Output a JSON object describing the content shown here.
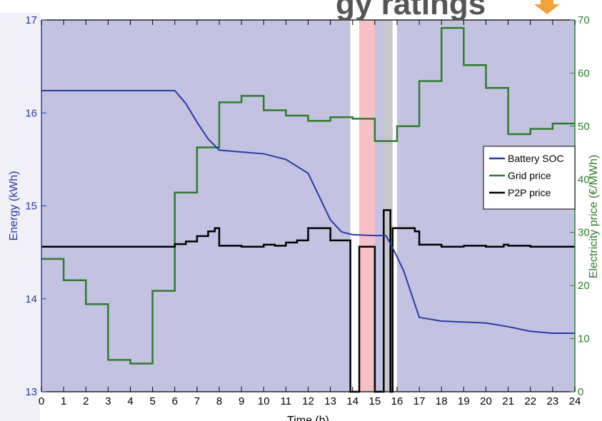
{
  "chart_data": {
    "type": "line",
    "title_fragment": "gy ratings",
    "xlabel": "Time (h)",
    "ylabel_left": "Energy (kWh)",
    "ylabel_right": "Electricity price (€/MWh)",
    "xlim": [
      0,
      24
    ],
    "ylim_left": [
      13,
      17
    ],
    "ylim_right": [
      0,
      70
    ],
    "x_ticks": [
      "0",
      "1",
      "2",
      "3",
      "4",
      "5",
      "6",
      "7",
      "8",
      "9",
      "10",
      "11",
      "12",
      "13",
      "14",
      "15",
      "16",
      "17",
      "18",
      "19",
      "20",
      "21",
      "22",
      "23",
      "24"
    ],
    "y_left_ticks": [
      "13",
      "14",
      "15",
      "16",
      "17"
    ],
    "y_right_ticks": [
      "0",
      "10",
      "20",
      "30",
      "40",
      "50",
      "60",
      "70"
    ],
    "grid": false,
    "legend_position": "right",
    "legend": [
      "Battery SOC",
      "Grid price",
      "P2P price"
    ],
    "colors": {
      "background": "#c3c3e1",
      "battery": "#2a3aa8",
      "grid_price": "#2e7d2e",
      "p2p": "#000000",
      "left_axis": "#2a3aa8",
      "right_axis": "#2e7d2e",
      "band_white": "#ffffff",
      "band_red": "#f6c0c6",
      "band_gray": "#c6c6cc",
      "arrow": "#f2a23a"
    },
    "highlight_bands": [
      {
        "x0": 13.9,
        "x1": 14.3,
        "kind": "white"
      },
      {
        "x0": 14.3,
        "x1": 15.0,
        "kind": "red"
      },
      {
        "x0": 15.4,
        "x1": 15.8,
        "kind": "gray"
      },
      {
        "x0": 15.8,
        "x1": 16.0,
        "kind": "white"
      }
    ],
    "series": [
      {
        "name": "Battery SOC",
        "axis": "left",
        "x": [
          0,
          6,
          6.5,
          7,
          7.5,
          8,
          9,
          10,
          11,
          12,
          12.5,
          13,
          13.5,
          14,
          15,
          15.5,
          15.8,
          16.3,
          17,
          18,
          19,
          20,
          21,
          22,
          23,
          24
        ],
        "y": [
          16.24,
          16.24,
          16.1,
          15.9,
          15.72,
          15.6,
          15.58,
          15.56,
          15.5,
          15.35,
          15.1,
          14.85,
          14.72,
          14.69,
          14.68,
          14.68,
          14.55,
          14.3,
          13.8,
          13.76,
          13.75,
          13.74,
          13.7,
          13.65,
          13.63,
          13.63
        ]
      },
      {
        "name": "Grid price",
        "axis": "right",
        "steps": [
          {
            "x0": 0,
            "x1": 1,
            "y": 25
          },
          {
            "x0": 1,
            "x1": 2,
            "y": 21
          },
          {
            "x0": 2,
            "x1": 3,
            "y": 16.5
          },
          {
            "x0": 3,
            "x1": 4,
            "y": 6
          },
          {
            "x0": 4,
            "x1": 5,
            "y": 5.3
          },
          {
            "x0": 5,
            "x1": 6,
            "y": 19
          },
          {
            "x0": 6,
            "x1": 7,
            "y": 37.5
          },
          {
            "x0": 7,
            "x1": 8,
            "y": 46
          },
          {
            "x0": 8,
            "x1": 9,
            "y": 54.5
          },
          {
            "x0": 9,
            "x1": 10,
            "y": 55.7
          },
          {
            "x0": 10,
            "x1": 11,
            "y": 53
          },
          {
            "x0": 11,
            "x1": 12,
            "y": 52
          },
          {
            "x0": 12,
            "x1": 13,
            "y": 51
          },
          {
            "x0": 13,
            "x1": 14,
            "y": 51.7
          },
          {
            "x0": 14,
            "x1": 15,
            "y": 51.4
          },
          {
            "x0": 15,
            "x1": 16,
            "y": 47.2
          },
          {
            "x0": 16,
            "x1": 17,
            "y": 50
          },
          {
            "x0": 17,
            "x1": 18,
            "y": 58.5
          },
          {
            "x0": 18,
            "x1": 19,
            "y": 68.5
          },
          {
            "x0": 19,
            "x1": 20,
            "y": 61.5
          },
          {
            "x0": 20,
            "x1": 21,
            "y": 57.2
          },
          {
            "x0": 21,
            "x1": 22,
            "y": 48.5
          },
          {
            "x0": 22,
            "x1": 23,
            "y": 49.5
          },
          {
            "x0": 23,
            "x1": 24,
            "y": 50.5
          }
        ]
      },
      {
        "name": "P2P price",
        "axis": "right",
        "x": [
          0,
          6,
          6,
          6.5,
          6.5,
          7,
          7,
          7.5,
          7.5,
          7.8,
          7.8,
          8,
          8,
          9,
          9,
          10,
          10,
          10.5,
          10.5,
          11,
          11,
          11.5,
          11.5,
          12,
          12,
          13,
          13,
          13.9,
          13.9,
          14.3,
          14.3,
          15.0,
          15.0,
          15.4,
          15.4,
          15.7,
          15.7,
          15.8,
          15.8,
          16.0,
          16.0,
          16.8,
          16.8,
          17,
          17,
          18,
          18,
          19,
          19,
          20,
          20,
          20.8,
          20.8,
          21,
          21,
          22,
          22,
          24
        ],
        "y": [
          27.3,
          27.3,
          27.8,
          27.8,
          28.3,
          28.3,
          29.3,
          29.3,
          30.2,
          30.2,
          30.8,
          30.8,
          27.5,
          27.5,
          27.3,
          27.3,
          27.7,
          27.7,
          27.5,
          27.5,
          28.1,
          28.1,
          28.5,
          28.5,
          30.8,
          30.8,
          28.5,
          28.5,
          0,
          0,
          27.3,
          27.3,
          0,
          0,
          34.2,
          34.2,
          0,
          0,
          30.8,
          30.8,
          30.8,
          30.8,
          30.2,
          30.2,
          27.7,
          27.7,
          27.3,
          27.3,
          27.5,
          27.5,
          27.3,
          27.3,
          27.7,
          27.7,
          27.5,
          27.5,
          27.3,
          27.3
        ]
      }
    ]
  }
}
